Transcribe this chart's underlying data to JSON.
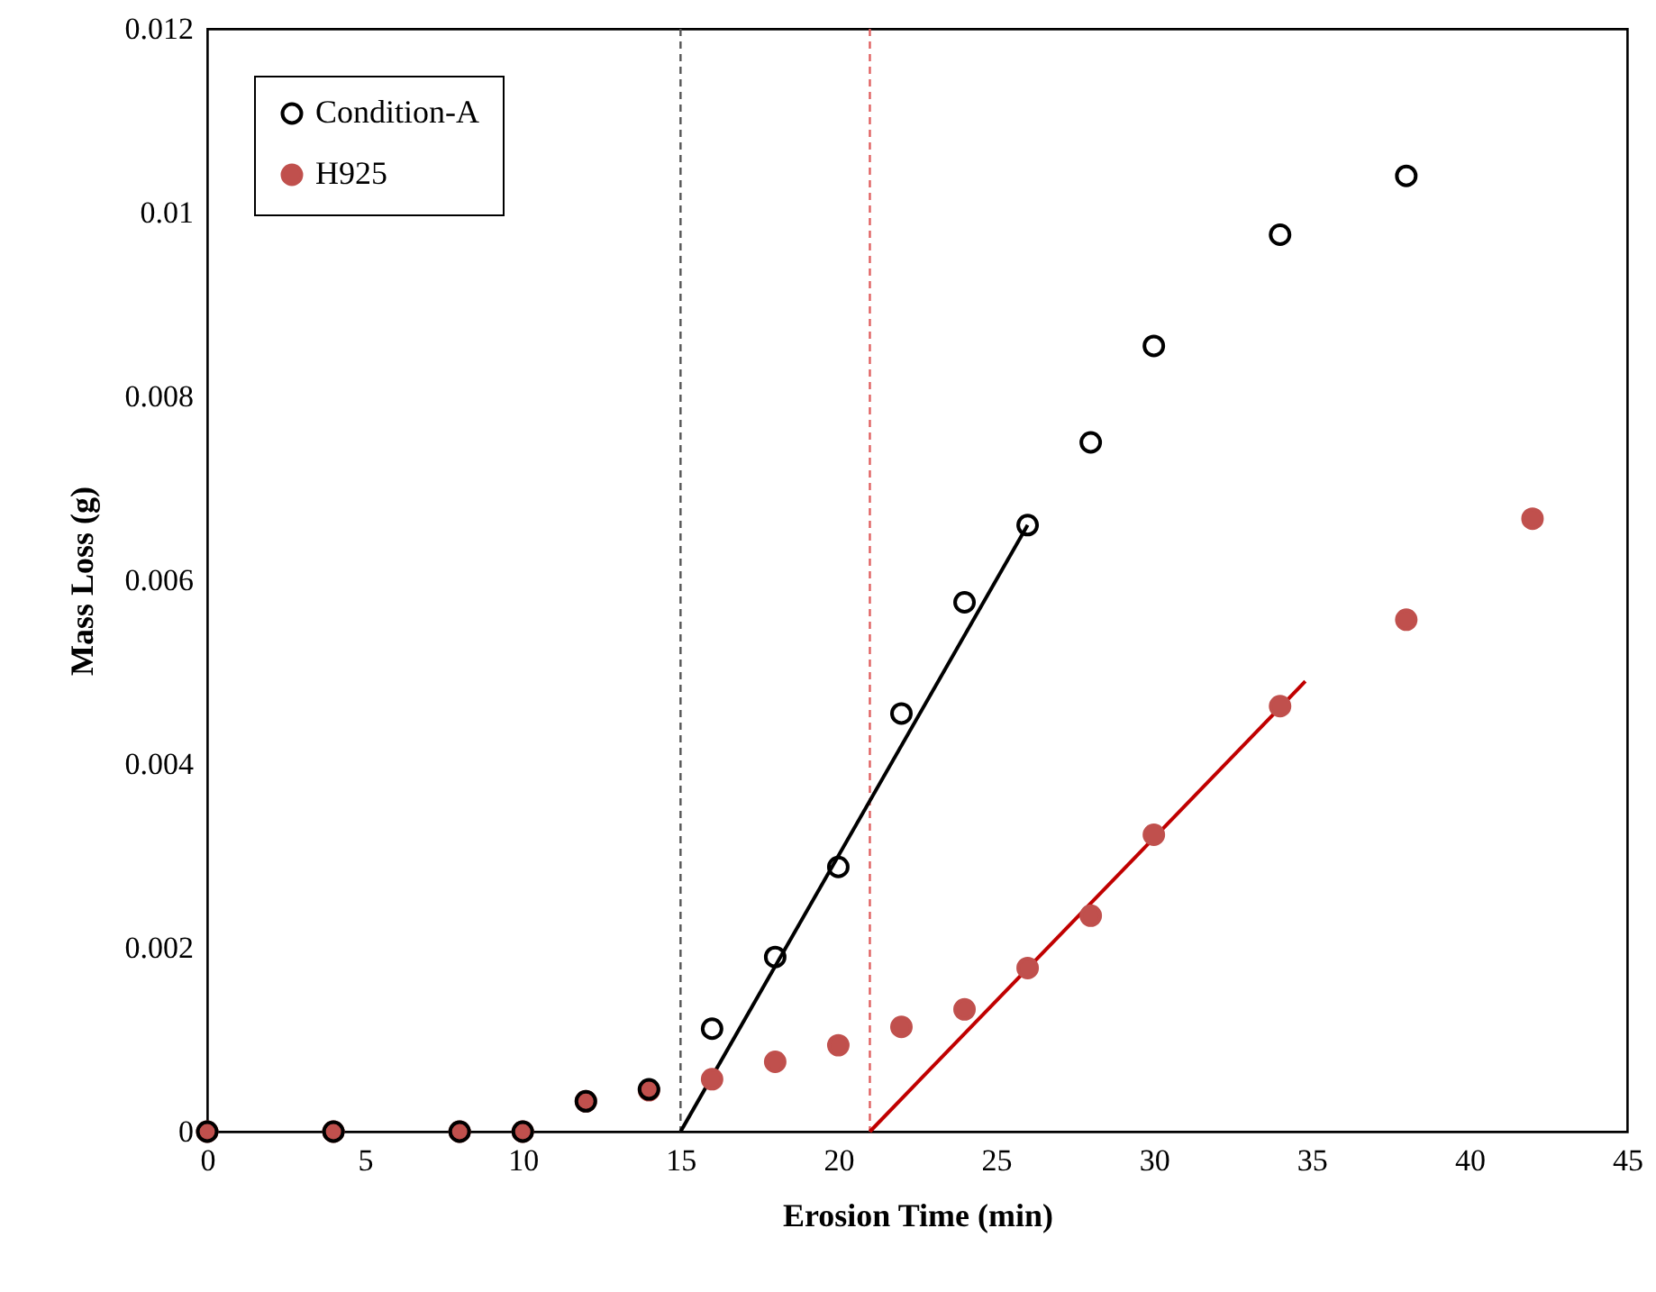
{
  "chart_data": {
    "type": "scatter",
    "xlabel": "Erosion Time (min)",
    "ylabel": "Mass Loss (g)",
    "xlim": [
      0,
      45
    ],
    "xticks": [
      0,
      5,
      10,
      15,
      20,
      25,
      30,
      35,
      40,
      45
    ],
    "ylim": [
      0,
      0.012
    ],
    "yticks": [
      0,
      0.002,
      0.004,
      0.006,
      0.008,
      0.01,
      0.012
    ],
    "grid": false,
    "legend": "top left",
    "series": [
      {
        "name": "Condition-A",
        "color": "#000000",
        "marker": "circle",
        "x": [
          0,
          4,
          8,
          10,
          12,
          14,
          16,
          18,
          20,
          22,
          24,
          26,
          28,
          30,
          34,
          38
        ],
        "values": [
          0,
          0,
          0,
          0,
          0.00033,
          0.00046,
          0.00112,
          0.0019,
          0.00288,
          0.00455,
          0.00576,
          0.0066,
          0.0075,
          0.00855,
          0.00976,
          0.0104
        ]
      },
      {
        "name": "H925",
        "color": "#c0504d",
        "marker": "circle",
        "x": [
          0,
          4,
          8,
          10,
          12,
          14,
          16,
          18,
          20,
          22,
          24,
          26,
          28,
          30,
          34,
          38,
          42
        ],
        "values": [
          0,
          0,
          0,
          0,
          0.00033,
          0.00045,
          0.00057,
          0.00076,
          0.00094,
          0.00114,
          0.00133,
          0.00178,
          0.00235,
          0.00323,
          0.00463,
          0.00557,
          0.00667
        ]
      },
      {
        "type": "line",
        "color": "#000000",
        "marker": "none",
        "x": [
          15,
          26
        ],
        "values": [
          0,
          0.0066
        ]
      },
      {
        "type": "line",
        "color": "#c00000",
        "marker": "none",
        "x": [
          21,
          34.8
        ],
        "values": [
          0,
          0.0049
        ]
      }
    ],
    "ref_lines": [
      {
        "axis": "x",
        "value": 15,
        "color": "#555555",
        "line_style": "dashed"
      },
      {
        "axis": "x",
        "value": 21,
        "color": "#e06060",
        "line_style": "dashed"
      }
    ]
  }
}
